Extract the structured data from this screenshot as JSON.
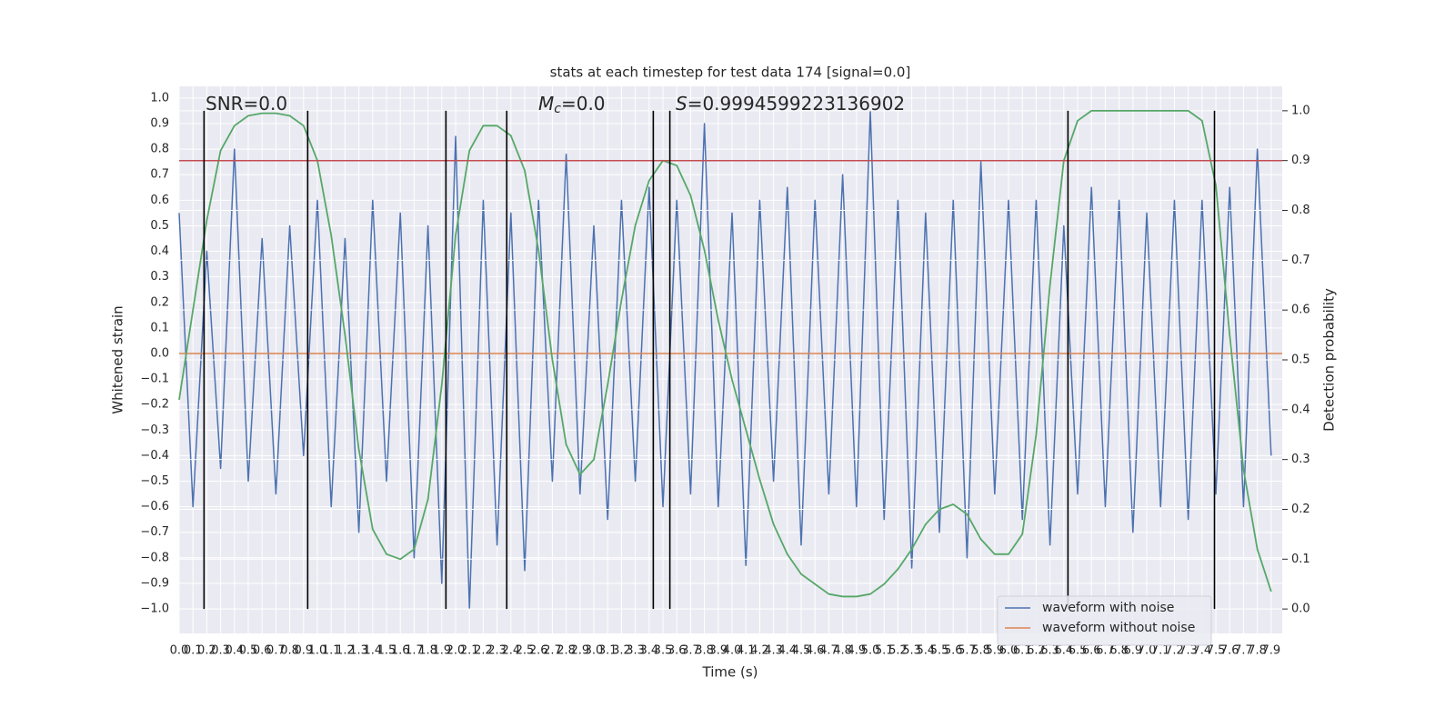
{
  "chart_data": {
    "type": "line",
    "title": "stats at each timestep for test data 174 [signal=0.0]",
    "x_label": "Time (s)",
    "y_label": "Whitened strain",
    "y2_label": "Detection probability",
    "x": [
      0,
      0.1,
      0.2,
      0.3,
      0.4,
      0.5,
      0.6,
      0.7,
      0.8,
      0.9,
      1,
      1.1,
      1.2,
      1.3,
      1.4,
      1.5,
      1.6,
      1.7,
      1.8,
      1.9,
      2,
      2.1,
      2.2,
      2.3,
      2.4,
      2.5,
      2.6,
      2.7,
      2.8,
      2.9,
      3,
      3.1,
      3.2,
      3.3,
      3.4,
      3.5,
      3.6,
      3.7,
      3.8,
      3.9,
      4,
      4.1,
      4.2,
      4.3,
      4.4,
      4.5,
      4.6,
      4.7,
      4.8,
      4.9,
      5,
      5.1,
      5.2,
      5.3,
      5.4,
      5.5,
      5.6,
      5.7,
      5.8,
      5.9,
      6,
      6.1,
      6.2,
      6.3,
      6.4,
      6.5,
      6.6,
      6.7,
      6.8,
      6.9,
      7,
      7.1,
      7.2,
      7.3,
      7.4,
      7.5,
      7.6,
      7.7,
      7.8,
      7.9
    ],
    "series": [
      {
        "name": "waveform with noise",
        "color": "#4c72b0",
        "axis": "y",
        "values": [
          0.55,
          -0.6,
          0.4,
          -0.45,
          0.8,
          -0.5,
          0.45,
          -0.55,
          0.5,
          -0.4,
          0.6,
          -0.6,
          0.45,
          -0.7,
          0.6,
          -0.5,
          0.55,
          -0.8,
          0.5,
          -0.9,
          0.85,
          -1.0,
          0.6,
          -0.75,
          0.55,
          -0.85,
          0.6,
          -0.5,
          0.78,
          -0.55,
          0.5,
          -0.65,
          0.6,
          -0.5,
          0.65,
          -0.6,
          0.6,
          -0.55,
          0.9,
          -0.6,
          0.55,
          -0.83,
          0.6,
          -0.5,
          0.65,
          -0.75,
          0.6,
          -0.55,
          0.7,
          -0.6,
          0.95,
          -0.65,
          0.6,
          -0.84,
          0.55,
          -0.7,
          0.6,
          -0.8,
          0.75,
          -0.55,
          0.6,
          -0.65,
          0.6,
          -0.75,
          0.5,
          -0.55,
          0.65,
          -0.6,
          0.6,
          -0.7,
          0.55,
          -0.6,
          0.6,
          -0.65,
          0.6,
          -0.55,
          0.65,
          -0.6,
          0.8,
          -0.4
        ]
      },
      {
        "name": "waveform without noise",
        "color": "#dd8452",
        "axis": "y",
        "x": [
          0,
          7.98
        ],
        "values": [
          0,
          0
        ]
      },
      {
        "color": "#55a868",
        "axis": "y2",
        "values": [
          0.42,
          0.6,
          0.78,
          0.92,
          0.97,
          0.99,
          0.995,
          0.995,
          0.99,
          0.97,
          0.9,
          0.75,
          0.55,
          0.32,
          0.16,
          0.11,
          0.1,
          0.12,
          0.22,
          0.45,
          0.75,
          0.92,
          0.97,
          0.97,
          0.95,
          0.88,
          0.72,
          0.5,
          0.33,
          0.27,
          0.3,
          0.45,
          0.62,
          0.77,
          0.86,
          0.9,
          0.89,
          0.83,
          0.72,
          0.58,
          0.46,
          0.36,
          0.26,
          0.17,
          0.11,
          0.07,
          0.05,
          0.03,
          0.025,
          0.025,
          0.03,
          0.05,
          0.08,
          0.12,
          0.17,
          0.2,
          0.21,
          0.19,
          0.14,
          0.11,
          0.11,
          0.15,
          0.35,
          0.65,
          0.9,
          0.98,
          1,
          1,
          1,
          1,
          1,
          1,
          1,
          1,
          0.98,
          0.85,
          0.55,
          0.28,
          0.12,
          0.035
        ]
      }
    ],
    "hlines": [
      {
        "value": 0.9,
        "axis": "y2",
        "color": "#c44e52"
      }
    ],
    "vlines": [
      0.18,
      0.93,
      1.93,
      2.37,
      3.43,
      3.55,
      6.43,
      7.49
    ],
    "vline_color": "#000000",
    "annotations": [
      {
        "text": "SNR=0.0"
      },
      {
        "symbol": "M",
        "subscript": "c",
        "text": "=0.0"
      },
      {
        "symbol": "S",
        "text": "=0.9994599223136902"
      }
    ],
    "xlim": [
      0,
      7.98
    ],
    "ylim": [
      -1.096,
      1.046
    ],
    "y2lim": [
      -0.049,
      1.049
    ],
    "xticks": [
      {
        "value": 0,
        "label": "0.0"
      },
      0.1,
      0.2,
      0.3,
      0.4,
      0.5,
      0.6,
      0.7,
      0.8,
      0.9,
      {
        "value": 1,
        "label": "1.0"
      },
      1.1,
      1.2,
      1.3,
      1.4,
      1.5,
      1.6,
      1.7,
      1.8,
      1.9,
      {
        "value": 2,
        "label": "2.0"
      },
      2.1,
      2.2,
      2.3,
      2.4,
      2.5,
      2.6,
      2.7,
      2.8,
      2.9,
      {
        "value": 3,
        "label": "3.0"
      },
      3.1,
      3.2,
      3.3,
      3.4,
      3.5,
      3.6,
      3.7,
      3.8,
      3.9,
      {
        "value": 4,
        "label": "4.0"
      },
      4.1,
      4.2,
      4.3,
      4.4,
      4.5,
      4.6,
      4.7,
      4.8,
      4.9,
      {
        "value": 5,
        "label": "5.0"
      },
      5.1,
      5.2,
      5.3,
      5.4,
      5.5,
      5.6,
      5.7,
      5.8,
      5.9,
      {
        "value": 6,
        "label": "6.0"
      },
      6.1,
      6.2,
      6.3,
      6.4,
      6.5,
      6.6,
      6.7,
      6.8,
      6.9,
      {
        "value": 7,
        "label": "7.0"
      },
      7.1,
      7.2,
      7.3,
      7.4,
      7.5,
      7.6,
      7.7,
      7.8,
      7.9
    ],
    "yticks": [
      {
        "value": -1,
        "label": "−1.0"
      },
      {
        "value": -0.9,
        "label": "−0.9"
      },
      {
        "value": -0.8,
        "label": "−0.8"
      },
      {
        "value": -0.7,
        "label": "−0.7"
      },
      {
        "value": -0.6,
        "label": "−0.6"
      },
      {
        "value": -0.5,
        "label": "−0.5"
      },
      {
        "value": -0.4,
        "label": "−0.4"
      },
      {
        "value": -0.3,
        "label": "−0.3"
      },
      {
        "value": -0.2,
        "label": "−0.2"
      },
      {
        "value": -0.1,
        "label": "−0.1"
      },
      {
        "value": 0,
        "label": "0.0"
      },
      0.1,
      0.2,
      0.3,
      0.4,
      0.5,
      0.6,
      0.7,
      0.8,
      0.9,
      {
        "value": 1,
        "label": "1.0"
      }
    ],
    "y2ticks": [
      {
        "value": 0,
        "label": "0.0"
      },
      0.1,
      0.2,
      0.3,
      0.4,
      0.5,
      0.6,
      0.7,
      0.8,
      0.9,
      {
        "value": 1,
        "label": "1.0"
      }
    ],
    "grid": true,
    "legend": "lower right"
  }
}
